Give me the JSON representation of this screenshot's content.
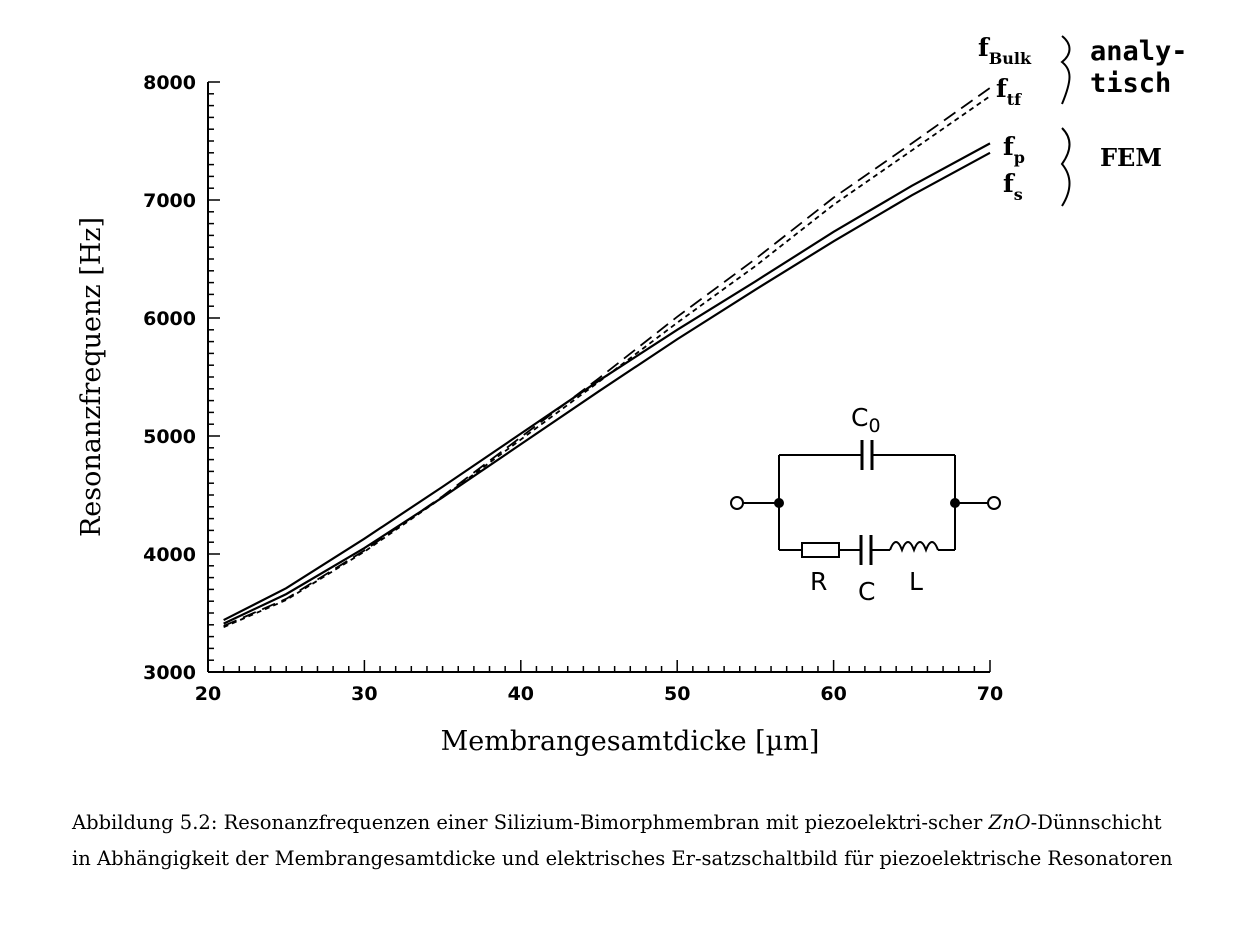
{
  "chart_data": {
    "type": "line",
    "title": "",
    "xlabel": "Membrangesamtdicke [µm]",
    "ylabel": "Resonanzfrequenz [Hz]",
    "xlim": [
      20,
      70
    ],
    "ylim": [
      3000,
      8000
    ],
    "x_ticks": [
      "20",
      "30",
      "40",
      "50",
      "60",
      "70"
    ],
    "y_ticks": [
      "3000",
      "4000",
      "5000",
      "6000",
      "7000",
      "8000"
    ],
    "grid": false,
    "series": [
      {
        "name": "f_Bulk",
        "style": "long-dash",
        "x": [
          21,
          25,
          30,
          35,
          40,
          45,
          50,
          55,
          60,
          65,
          70
        ],
        "y": [
          3390,
          3620,
          4030,
          4490,
          4990,
          5490,
          6010,
          6500,
          7020,
          7480,
          7950
        ]
      },
      {
        "name": "f_tf",
        "style": "short-dash",
        "x": [
          21,
          25,
          30,
          35,
          40,
          45,
          50,
          55,
          60,
          65,
          70
        ],
        "y": [
          3380,
          3610,
          4020,
          4480,
          4970,
          5460,
          5960,
          6440,
          6960,
          7420,
          7880
        ]
      },
      {
        "name": "f_p",
        "style": "solid",
        "x": [
          21,
          25,
          30,
          35,
          40,
          45,
          50,
          55,
          60,
          65,
          70
        ],
        "y": [
          3440,
          3710,
          4130,
          4570,
          5020,
          5470,
          5900,
          6310,
          6730,
          7120,
          7480
        ]
      },
      {
        "name": "f_s",
        "style": "solid",
        "x": [
          21,
          25,
          30,
          35,
          40,
          45,
          50,
          55,
          60,
          65,
          70
        ],
        "y": [
          3410,
          3660,
          4050,
          4480,
          4930,
          5380,
          5820,
          6240,
          6650,
          7040,
          7400
        ]
      }
    ],
    "annotations": {
      "f_bulk": {
        "base": "f",
        "sub": "Bulk"
      },
      "f_tf": {
        "base": "f",
        "sub": "tf"
      },
      "f_p": {
        "base": "f",
        "sub": "p"
      },
      "f_s": {
        "base": "f",
        "sub": "s"
      },
      "group_analytic_1": "analy-",
      "group_analytic_2": "tisch",
      "group_fem": "FEM"
    },
    "circuit": {
      "c0": "C",
      "c0_sub": "0",
      "r": "R",
      "c": "C",
      "l": "L"
    }
  },
  "caption": {
    "prefix": "Abbildung 5.2: Resonanzfrequenzen einer Silizium-Bimorphmembran mit piezoelektri-scher ",
    "italic": "ZnO",
    "suffix": "-Dünnschicht in Abhängigkeit der Membrangesamtdicke und elektrisches Er-satzschaltbild für piezoelektrische Resonatoren"
  }
}
